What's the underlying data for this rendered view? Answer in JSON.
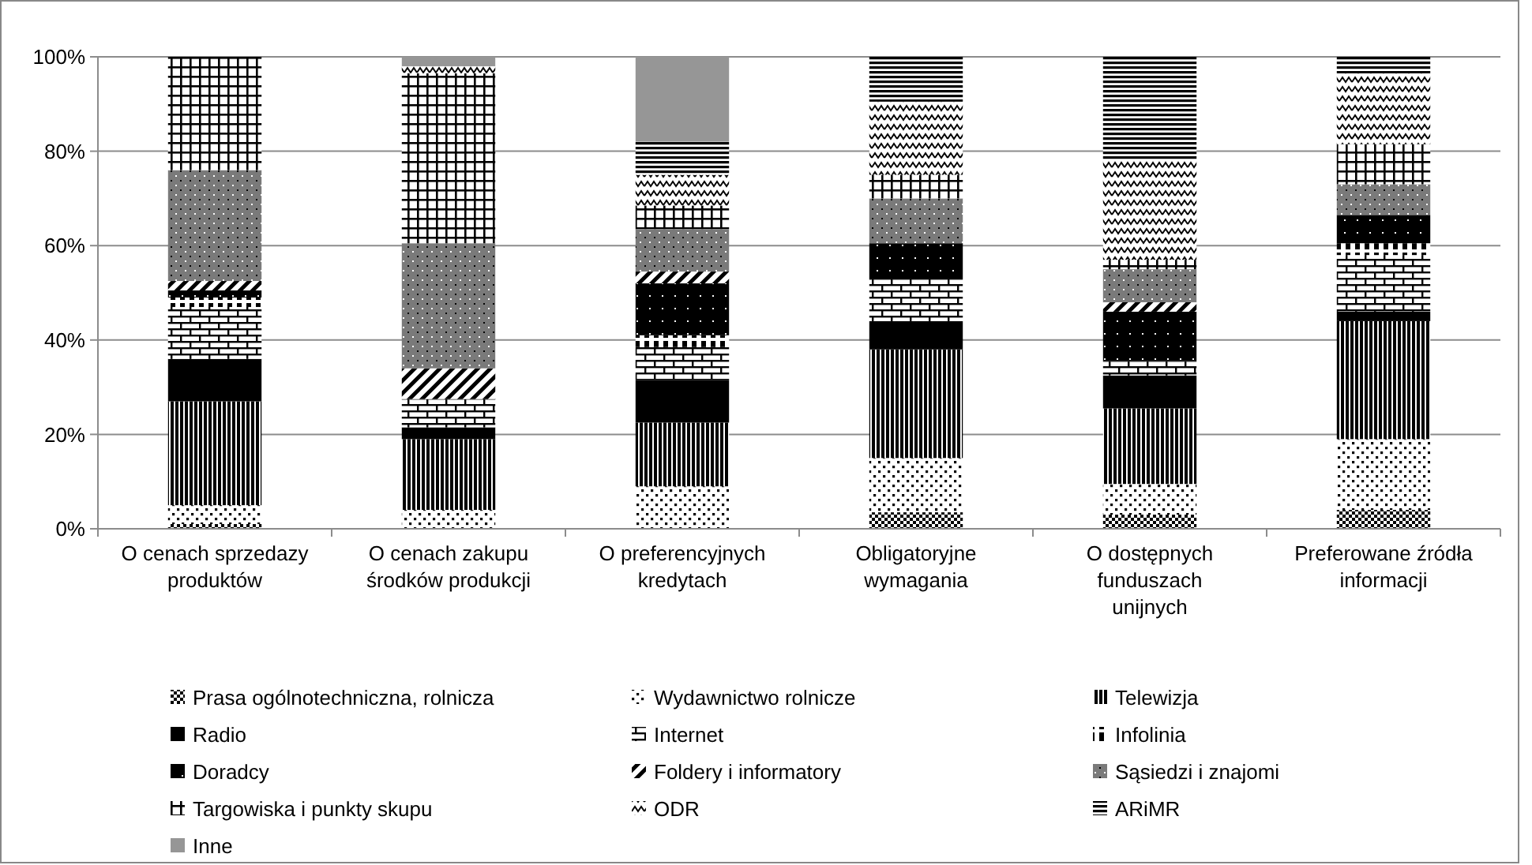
{
  "chart_data": {
    "type": "bar",
    "stacked": true,
    "categories": [
      "O cenach sprzedazy produktów",
      "O cenach zakupu środków produkcji",
      "O preferencyjnych kredytach",
      "Obligatoryjne wymagania",
      "O dostępnych funduszach unijnych",
      "Preferowane źródła informacji"
    ],
    "ylim": [
      0,
      100
    ],
    "yticks": [
      {
        "value": 0,
        "label": "0%"
      },
      {
        "value": 20,
        "label": "20%"
      },
      {
        "value": 40,
        "label": "40%"
      },
      {
        "value": 60,
        "label": "60%"
      },
      {
        "value": 80,
        "label": "80%"
      },
      {
        "value": 100,
        "label": "100%"
      }
    ],
    "grid": "y",
    "legend": "bottom",
    "series": [
      {
        "name": "Prasa ogólnotechniczna, rolnicza",
        "color": "#000000",
        "values": [
          1,
          0,
          0,
          3.5,
          3,
          4
        ]
      },
      {
        "name": "Wydawnictwo rolnicze",
        "color": "#000000",
        "values": [
          4,
          4,
          9,
          11.5,
          6.5,
          15
        ]
      },
      {
        "name": "Telewizja",
        "color": "#000000",
        "values": [
          22,
          15,
          13.5,
          23,
          16,
          25
        ]
      },
      {
        "name": "Radio",
        "color": "#000000",
        "values": [
          9,
          2.5,
          9,
          6,
          7,
          2
        ]
      },
      {
        "name": "Internet",
        "color": "#000000",
        "values": [
          11,
          6,
          7,
          9,
          3,
          12
        ]
      },
      {
        "name": "Infolinia",
        "color": "#000000",
        "values": [
          2,
          0,
          2.5,
          0,
          0,
          2.5
        ]
      },
      {
        "name": "Doradcy",
        "color": "#000000",
        "values": [
          1.5,
          0,
          11,
          7.5,
          10.5,
          6
        ]
      },
      {
        "name": "Foldery i informatory",
        "color": "#000000",
        "values": [
          2,
          6.5,
          2.5,
          0,
          2,
          0
        ]
      },
      {
        "name": "Sąsiedzi i znajomi",
        "color": "#000000",
        "values": [
          23.5,
          26.5,
          9,
          9.5,
          7,
          6.5
        ]
      },
      {
        "name": "Targowiska i punkty skupu",
        "color": "#000000",
        "values": [
          24,
          36,
          5,
          5,
          2,
          8.5
        ]
      },
      {
        "name": "ODR",
        "color": "#000000",
        "values": [
          0,
          1.5,
          6.5,
          15.5,
          21,
          15
        ]
      },
      {
        "name": "ARiMR",
        "color": "#000000",
        "values": [
          0,
          0,
          7,
          9.5,
          22,
          3.5
        ]
      },
      {
        "name": "Inne",
        "color": "#969696",
        "values": [
          0,
          2,
          18,
          0,
          0,
          0
        ]
      }
    ]
  }
}
